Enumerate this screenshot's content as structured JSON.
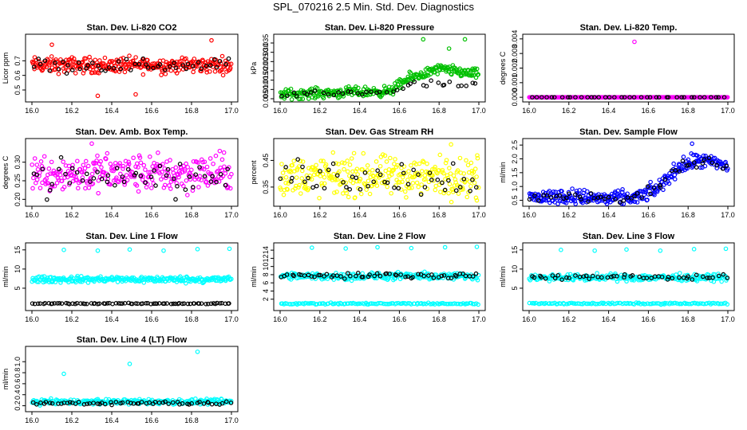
{
  "page_title": "SPL_070216  2.5 Min. Std. Dev. Diagnostics",
  "chart_data": [
    {
      "id": "co2",
      "type": "scatter",
      "title": "Stan. Dev. Li-820 CO2",
      "ylabel": "Licor ppm",
      "xlim": [
        16.0,
        17.0
      ],
      "ylim": [
        0.44,
        0.86
      ],
      "xticks": [
        "16.0",
        "16.2",
        "16.4",
        "16.6",
        "16.8",
        "17.0"
      ],
      "yticks": [
        {
          "v": 0.5,
          "label": "0.5"
        },
        {
          "v": 0.6,
          "label": "0.6"
        },
        {
          "v": 0.7,
          "label": "0.7"
        }
      ],
      "series": [
        {
          "name": "main",
          "color": "#ff0000",
          "n": 300,
          "base": [
            [
              16.0,
              0.67
            ],
            [
              17.0,
              0.67
            ]
          ],
          "noise": 0.08,
          "outliers": [
            [
              16.9,
              0.84
            ],
            [
              16.1,
              0.81
            ],
            [
              16.33,
              0.46
            ],
            [
              16.52,
              0.47
            ]
          ]
        },
        {
          "name": "overlay",
          "color": "#000000",
          "n": 50,
          "base": [
            [
              16.0,
              0.67
            ],
            [
              17.0,
              0.67
            ]
          ],
          "noise": 0.07,
          "outliers": []
        }
      ]
    },
    {
      "id": "pressure",
      "type": "scatter",
      "title": "Stan. Dev. Li-820 Pressure",
      "ylabel": "kPa",
      "xlim": [
        16.0,
        17.0
      ],
      "ylim": [
        0.005,
        0.038
      ],
      "xticks": [
        "16.0",
        "16.2",
        "16.4",
        "16.6",
        "16.8",
        "17.0"
      ],
      "yticks": [
        {
          "v": 0.005,
          "label": "0.005"
        },
        {
          "v": 0.01,
          "label": "0.010"
        },
        {
          "v": 0.015,
          "label": "0.015"
        },
        {
          "v": 0.02,
          "label": "0.020"
        },
        {
          "v": 0.025,
          "label": "0.025"
        },
        {
          "v": 0.03,
          "label": "0.030"
        },
        {
          "v": 0.035,
          "label": "0.035"
        }
      ],
      "series": [
        {
          "name": "main",
          "color": "#00c000",
          "n": 300,
          "base": [
            [
              16.0,
              0.0075
            ],
            [
              16.55,
              0.009
            ],
            [
              16.65,
              0.016
            ],
            [
              16.8,
              0.021
            ],
            [
              17.0,
              0.018
            ]
          ],
          "noise": 0.004,
          "outliers": [
            [
              16.72,
              0.037
            ],
            [
              16.93,
              0.037
            ],
            [
              16.85,
              0.032
            ]
          ]
        },
        {
          "name": "overlay",
          "color": "#000000",
          "n": 40,
          "base": [
            [
              16.0,
              0.007
            ],
            [
              16.55,
              0.009
            ],
            [
              16.7,
              0.013
            ],
            [
              17.0,
              0.012
            ]
          ],
          "noise": 0.003,
          "outliers": []
        }
      ]
    },
    {
      "id": "temp",
      "type": "scatter",
      "title": "Stan. Dev. Li-820 Temp.",
      "ylabel": "degrees C",
      "xlim": [
        16.0,
        17.0
      ],
      "ylim": [
        -0.0001,
        0.0041
      ],
      "xticks": [
        "16.0",
        "16.2",
        "16.4",
        "16.6",
        "16.8",
        "17.0"
      ],
      "yticks": [
        {
          "v": 0,
          "label": "0.000"
        },
        {
          "v": 0.001,
          "label": "0.001"
        },
        {
          "v": 0.002,
          "label": "0.002"
        },
        {
          "v": 0.003,
          "label": "0.003"
        },
        {
          "v": 0.004,
          "label": "0.004"
        }
      ],
      "series": [
        {
          "name": "main",
          "color": "#ff00ff",
          "n": 300,
          "base": [
            [
              16.0,
              0
            ],
            [
              17.0,
              0
            ]
          ],
          "noise": 0,
          "outliers": [
            [
              16.53,
              0.0038
            ]
          ]
        },
        {
          "name": "overlay",
          "color": "#000000",
          "n": 40,
          "base": [
            [
              16.0,
              0
            ],
            [
              17.0,
              0
            ]
          ],
          "noise": 0,
          "outliers": []
        }
      ]
    },
    {
      "id": "ambbox",
      "type": "scatter",
      "title": "Stan. Dev. Amb. Box Temp.",
      "ylabel": "degrees C",
      "xlim": [
        16.0,
        17.0
      ],
      "ylim": [
        0.19,
        0.355
      ],
      "xticks": [
        "16.0",
        "16.2",
        "16.4",
        "16.6",
        "16.8",
        "17.0"
      ],
      "yticks": [
        {
          "v": 0.2,
          "label": "0.20"
        },
        {
          "v": 0.25,
          "label": "0.25"
        },
        {
          "v": 0.3,
          "label": "0.30"
        }
      ],
      "series": [
        {
          "name": "main",
          "color": "#ff00ff",
          "n": 300,
          "base": [
            [
              16.0,
              0.27
            ],
            [
              17.0,
              0.27
            ]
          ],
          "noise": 0.075,
          "outliers": [
            [
              16.3,
              0.35
            ]
          ]
        },
        {
          "name": "overlay",
          "color": "#000000",
          "n": 50,
          "base": [
            [
              16.0,
              0.26
            ],
            [
              17.0,
              0.26
            ]
          ],
          "noise": 0.07,
          "outliers": [
            [
              16.72,
              0.2
            ]
          ]
        }
      ]
    },
    {
      "id": "rh",
      "type": "scatter",
      "title": "Stan. Dev. Gas Stream RH",
      "ylabel": "percent",
      "xlim": [
        16.0,
        17.0
      ],
      "ylim": [
        0.29,
        0.52
      ],
      "xticks": [
        "16.0",
        "16.2",
        "16.4",
        "16.6",
        "16.8",
        "17.0"
      ],
      "yticks": [
        {
          "v": 0.35,
          "label": "0.35"
        },
        {
          "v": 0.45,
          "label": "0.45"
        }
      ],
      "series": [
        {
          "name": "main",
          "color": "#ffff00",
          "n": 300,
          "base": [
            [
              16.0,
              0.39
            ],
            [
              17.0,
              0.39
            ]
          ],
          "noise": 0.11,
          "outliers": [
            [
              16.86,
              0.51
            ],
            [
              16.99,
              0.3
            ]
          ]
        },
        {
          "name": "overlay",
          "color": "#000000",
          "n": 50,
          "base": [
            [
              16.0,
              0.39
            ],
            [
              17.0,
              0.39
            ]
          ],
          "noise": 0.1,
          "outliers": []
        }
      ]
    },
    {
      "id": "sampleflow",
      "type": "scatter",
      "title": "Stan. Dev. Sample Flow",
      "ylabel": "ml/min",
      "xlim": [
        16.0,
        17.0
      ],
      "ylim": [
        0.4,
        2.62
      ],
      "xticks": [
        "16.0",
        "16.2",
        "16.4",
        "16.6",
        "16.8",
        "17.0"
      ],
      "yticks": [
        {
          "v": 0.5,
          "label": "0.5"
        },
        {
          "v": 1.0,
          "label": "1.0"
        },
        {
          "v": 1.5,
          "label": "1.5"
        },
        {
          "v": 2.0,
          "label": "2.0"
        },
        {
          "v": 2.5,
          "label": "2.5"
        }
      ],
      "series": [
        {
          "name": "main",
          "color": "#0000ff",
          "n": 300,
          "base": [
            [
              16.0,
              0.6
            ],
            [
              16.2,
              0.65
            ],
            [
              16.4,
              0.55
            ],
            [
              16.55,
              0.6
            ],
            [
              16.65,
              0.95
            ],
            [
              16.75,
              1.7
            ],
            [
              16.85,
              1.95
            ],
            [
              17.0,
              1.75
            ]
          ],
          "noise": 0.4,
          "outliers": [
            [
              16.82,
              2.55
            ]
          ]
        },
        {
          "name": "overlay",
          "color": "#000000",
          "n": 50,
          "base": [
            [
              16.0,
              0.6
            ],
            [
              16.2,
              0.65
            ],
            [
              16.4,
              0.55
            ],
            [
              16.55,
              0.6
            ],
            [
              16.65,
              0.95
            ],
            [
              16.75,
              1.7
            ],
            [
              16.85,
              1.95
            ],
            [
              17.0,
              1.75
            ]
          ],
          "noise": 0.3,
          "outliers": []
        }
      ]
    },
    {
      "id": "line1",
      "type": "scatter",
      "title": "Stan. Dev. Line 1 Flow",
      "ylabel": "ml/min",
      "xlim": [
        16.0,
        17.0
      ],
      "ylim": [
        0,
        16
      ],
      "xticks": [
        "16.0",
        "16.2",
        "16.4",
        "16.6",
        "16.8",
        "17.0"
      ],
      "yticks": [
        {
          "v": 5,
          "label": "5"
        },
        {
          "v": 10,
          "label": "10"
        },
        {
          "v": 15,
          "label": "15"
        }
      ],
      "series": [
        {
          "name": "main",
          "color": "#00ffff",
          "n": 260,
          "base": [
            [
              16.0,
              7.3
            ],
            [
              17.0,
              7.3
            ]
          ],
          "noise": 1.2,
          "outliers": [
            [
              16.16,
              15
            ],
            [
              16.33,
              14.8
            ],
            [
              16.49,
              15.1
            ],
            [
              16.66,
              14.8
            ],
            [
              16.83,
              15.2
            ],
            [
              16.99,
              15.3
            ]
          ]
        },
        {
          "name": "overlay",
          "color": "#000000",
          "n": 80,
          "base": [
            [
              16.0,
              1.0
            ],
            [
              17.0,
              1.0
            ]
          ],
          "noise": 0.2,
          "outliers": []
        }
      ]
    },
    {
      "id": "line2",
      "type": "scatter",
      "title": "Stan. Dev. Line 2 Flow",
      "ylabel": "ml/min",
      "xlim": [
        16.0,
        17.0
      ],
      "ylim": [
        0,
        15
      ],
      "xticks": [
        "16.0",
        "16.2",
        "16.4",
        "16.6",
        "16.8",
        "17.0"
      ],
      "yticks": [
        {
          "v": 2,
          "label": "2"
        },
        {
          "v": 4,
          "label": "4"
        },
        {
          "v": 6,
          "label": "6"
        },
        {
          "v": 8,
          "label": "8"
        },
        {
          "v": 10,
          "label": "10"
        },
        {
          "v": 12,
          "label": "12"
        },
        {
          "v": 14,
          "label": "14"
        }
      ],
      "series": [
        {
          "name": "main",
          "color": "#00ffff",
          "n": 240,
          "base": [
            [
              16.0,
              7.6
            ],
            [
              17.0,
              7.6
            ]
          ],
          "noise": 1.3,
          "outliers": [
            [
              16.16,
              14.6
            ],
            [
              16.33,
              14.4
            ],
            [
              16.49,
              14.7
            ],
            [
              16.66,
              14.5
            ],
            [
              16.83,
              14.7
            ],
            [
              16.99,
              14.8
            ]
          ]
        },
        {
          "name": "low",
          "color": "#00ffff",
          "n": 120,
          "base": [
            [
              16.0,
              0.9
            ],
            [
              17.0,
              0.9
            ]
          ],
          "noise": 0.3,
          "outliers": []
        },
        {
          "name": "overlay",
          "color": "#000000",
          "n": 60,
          "base": [
            [
              16.0,
              7.8
            ],
            [
              17.0,
              7.8
            ]
          ],
          "noise": 0.9,
          "outliers": []
        }
      ]
    },
    {
      "id": "line3",
      "type": "scatter",
      "title": "Stan. Dev. Line 3 Flow",
      "ylabel": "ml/min",
      "xlim": [
        16.0,
        17.0
      ],
      "ylim": [
        0,
        16
      ],
      "xticks": [
        "16.0",
        "16.2",
        "16.4",
        "16.6",
        "16.8",
        "17.0"
      ],
      "yticks": [
        {
          "v": 5,
          "label": "5"
        },
        {
          "v": 10,
          "label": "10"
        },
        {
          "v": 15,
          "label": "15"
        }
      ],
      "series": [
        {
          "name": "main",
          "color": "#00ffff",
          "n": 240,
          "base": [
            [
              16.0,
              7.8
            ],
            [
              17.0,
              7.8
            ]
          ],
          "noise": 1.3,
          "outliers": [
            [
              16.16,
              15
            ],
            [
              16.33,
              14.8
            ],
            [
              16.49,
              15.1
            ],
            [
              16.66,
              14.8
            ],
            [
              16.83,
              15.2
            ],
            [
              16.99,
              15.3
            ]
          ]
        },
        {
          "name": "low",
          "color": "#00ffff",
          "n": 120,
          "base": [
            [
              16.0,
              1.0
            ],
            [
              17.0,
              1.0
            ]
          ],
          "noise": 0.3,
          "outliers": []
        },
        {
          "name": "overlay",
          "color": "#000000",
          "n": 50,
          "base": [
            [
              16.0,
              8.0
            ],
            [
              17.0,
              7.8
            ]
          ],
          "noise": 1.0,
          "outliers": []
        }
      ]
    },
    {
      "id": "line4",
      "type": "scatter",
      "title": "Stan. Dev. Line 4 (LT) Flow",
      "ylabel": "ml/min",
      "xlim": [
        16.0,
        17.0
      ],
      "ylim": [
        0.15,
        1.22
      ],
      "xticks": [
        "16.0",
        "16.2",
        "16.4",
        "16.6",
        "16.8",
        "17.0"
      ],
      "yticks": [
        {
          "v": 0.2,
          "label": "0.2"
        },
        {
          "v": 0.4,
          "label": "0.4"
        },
        {
          "v": 0.6,
          "label": "0.6"
        },
        {
          "v": 0.8,
          "label": "0.8"
        },
        {
          "v": 1.0,
          "label": "1.0"
        }
      ],
      "series": [
        {
          "name": "main",
          "color": "#00ffff",
          "n": 260,
          "base": [
            [
              16.0,
              0.27
            ],
            [
              17.0,
              0.27
            ]
          ],
          "noise": 0.07,
          "outliers": [
            [
              16.16,
              0.78
            ],
            [
              16.49,
              0.96
            ],
            [
              16.83,
              1.18
            ],
            [
              16.33,
              0.32
            ]
          ]
        },
        {
          "name": "overlay",
          "color": "#000000",
          "n": 60,
          "base": [
            [
              16.0,
              0.25
            ],
            [
              17.0,
              0.25
            ]
          ],
          "noise": 0.05,
          "outliers": []
        }
      ]
    }
  ]
}
